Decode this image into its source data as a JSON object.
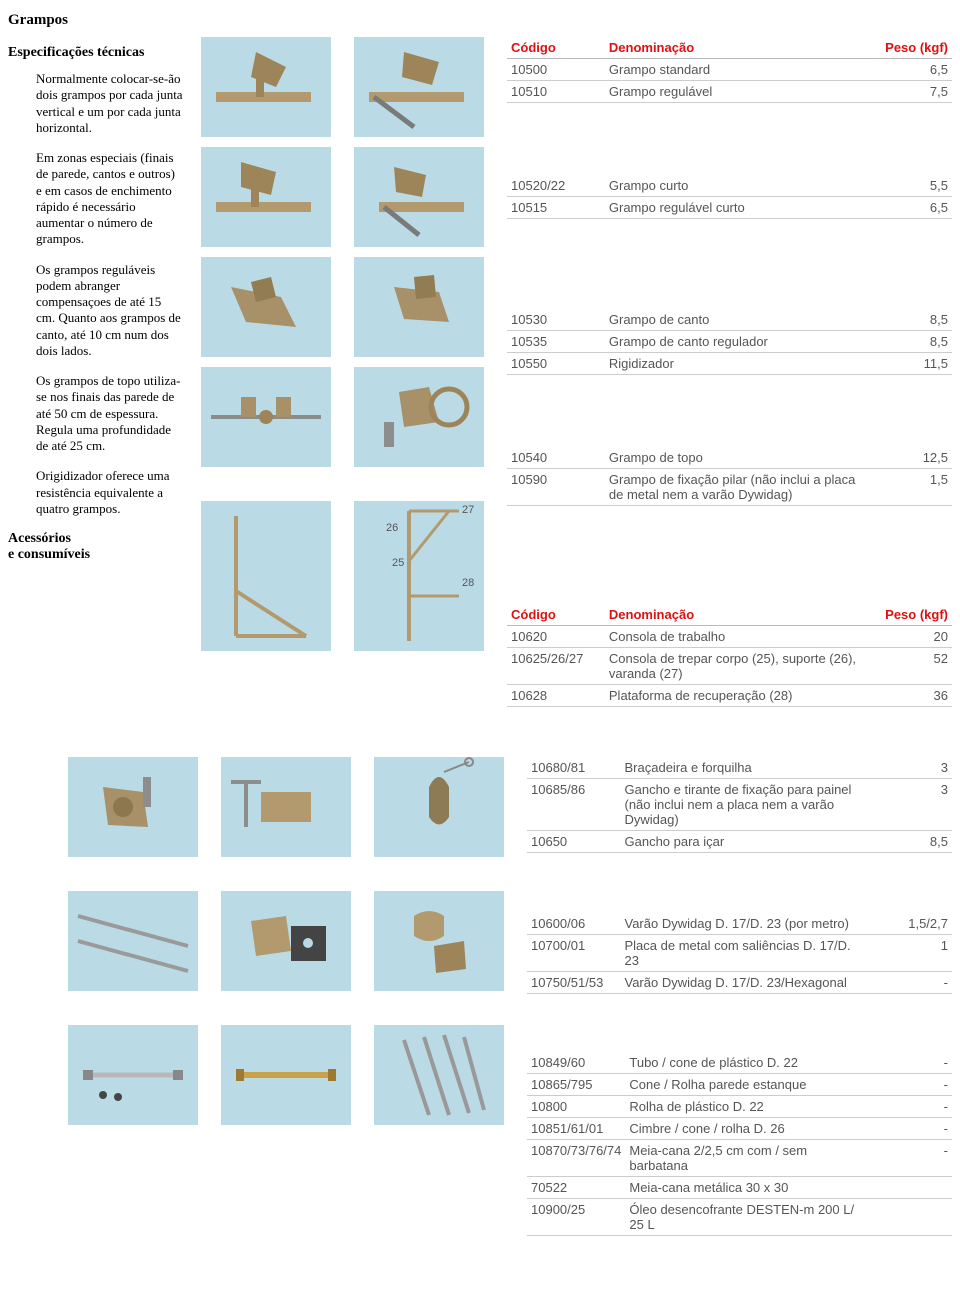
{
  "heading_grampos": "Grampos",
  "heading_specs": "Especificações técnicas",
  "text": {
    "p1": "Normalmente colocar-se-ão dois grampos por cada junta vertical e um por cada junta horizontal.",
    "p2": "Em zonas especiais (finais de parede, cantos e outros) e em casos de enchimento rápido é necessário aumentar o número de grampos.",
    "p3": "Os grampos reguláveis podem abranger compensaçoes de até 15 cm. Quanto aos grampos de canto, até 10 cm num dos dois lados.",
    "p4": "Os grampos de topo utiliza-se nos finais das parede de até 50 cm de espessura. Regula uma profundidade de até 25 cm.",
    "p5": "Origidizador oferece uma resistência equivalente a quatro grampos."
  },
  "heading_accessories_l1": "Acessórios",
  "heading_accessories_l2": "e consumíveis",
  "columns": {
    "code": "Código",
    "denom": "Denominação",
    "peso": "Peso (kgf)"
  },
  "tables": {
    "g1": [
      {
        "code": "10500",
        "denom": "Grampo standard",
        "peso": "6,5"
      },
      {
        "code": "10510",
        "denom": "Grampo regulável",
        "peso": "7,5"
      }
    ],
    "g2": [
      {
        "code": "10520/22",
        "denom": "Grampo curto",
        "peso": "5,5"
      },
      {
        "code": "10515",
        "denom": "Grampo regulável curto",
        "peso": "6,5"
      }
    ],
    "g3": [
      {
        "code": "10530",
        "denom": "Grampo de canto",
        "peso": "8,5"
      },
      {
        "code": "10535",
        "denom": "Grampo de canto regulador",
        "peso": "8,5"
      },
      {
        "code": "10550",
        "denom": "Rigidizador",
        "peso": "11,5"
      }
    ],
    "g4": [
      {
        "code": "10540",
        "denom": "Grampo de topo",
        "peso": "12,5"
      },
      {
        "code": "10590",
        "denom": "Grampo de fixação pilar (não inclui a placa de metal nem a varão Dywidag)",
        "peso": "1,5"
      }
    ],
    "a1": [
      {
        "code": "10620",
        "denom": "Consola de trabalho",
        "peso": "20"
      },
      {
        "code": "10625/26/27",
        "denom": "Consola de trepar corpo (25), suporte (26), varanda (27)",
        "peso": "52"
      },
      {
        "code": "10628",
        "denom": "Plataforma de recuperação (28)",
        "peso": "36"
      }
    ],
    "a2": [
      {
        "code": "10680/81",
        "denom": "Braçadeira e forquilha",
        "peso": "3"
      },
      {
        "code": "10685/86",
        "denom": "Gancho e tirante de fixação para painel (não inclui nem a placa nem a varão Dywidag)",
        "peso": "3"
      },
      {
        "code": "10650",
        "denom": "Gancho para içar",
        "peso": "8,5"
      }
    ],
    "a3": [
      {
        "code": "10600/06",
        "denom": "Varão Dywidag D. 17/D. 23 (por metro)",
        "peso": "1,5/2,7"
      },
      {
        "code": "10700/01",
        "denom": "Placa de metal com saliências D. 17/D. 23",
        "peso": "1"
      },
      {
        "code": "10750/51/53",
        "denom": "Varão Dywidag D. 17/D. 23/Hexagonal",
        "peso": "-"
      }
    ],
    "a4": [
      {
        "code": "10849/60",
        "denom": "Tubo / cone de plástico D. 22",
        "peso": "-"
      },
      {
        "code": "10865/795",
        "denom": "Cone / Rolha parede estanque",
        "peso": "-"
      },
      {
        "code": "10800",
        "denom": "Rolha de plástico D. 22",
        "peso": "-"
      },
      {
        "code": "10851/61/01",
        "denom": "Cimbre / cone / rolha D. 26",
        "peso": "-"
      },
      {
        "code": "10870/73/76/74",
        "denom": "Meia-cana 2/2,5 cm com / sem barbatana",
        "peso": "-"
      },
      {
        "code": "70522",
        "denom": "Meia-cana metálica 30 x 30",
        "peso": ""
      },
      {
        "code": "10900/25",
        "denom": "Óleo desencofrante DESTEN-m 200 L/ 25 L",
        "peso": ""
      }
    ]
  },
  "diagram_labels": {
    "n25": "25",
    "n26": "26",
    "n27": "27",
    "n28": "28"
  },
  "style": {
    "thumb_bg": "#badbe6",
    "header_color": "#d11",
    "row_border": "#ccc",
    "body_font": "Times New Roman",
    "table_font": "Arial"
  }
}
